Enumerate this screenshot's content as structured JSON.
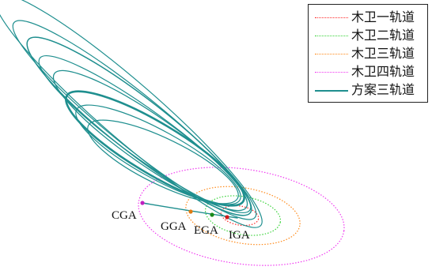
{
  "legend": {
    "items": [
      {
        "label": "木卫一轨道",
        "color": "#ff2a2a",
        "style": "dotted"
      },
      {
        "label": "木卫二轨道",
        "color": "#39d339",
        "style": "dotted"
      },
      {
        "label": "木卫三轨道",
        "color": "#ff8a1a",
        "style": "dotted"
      },
      {
        "label": "木卫四轨道",
        "color": "#f039f0",
        "style": "dotted"
      },
      {
        "label": "方案三轨道",
        "color": "#1f8f8f",
        "style": "solid"
      }
    ]
  },
  "flybys": [
    {
      "label": "CGA",
      "color": "#c020c0"
    },
    {
      "label": "GGA",
      "color": "#e07a10"
    },
    {
      "label": "EGA",
      "color": "#1a8a1a"
    },
    {
      "label": "IGA",
      "color": "#d01a1a"
    }
  ]
}
